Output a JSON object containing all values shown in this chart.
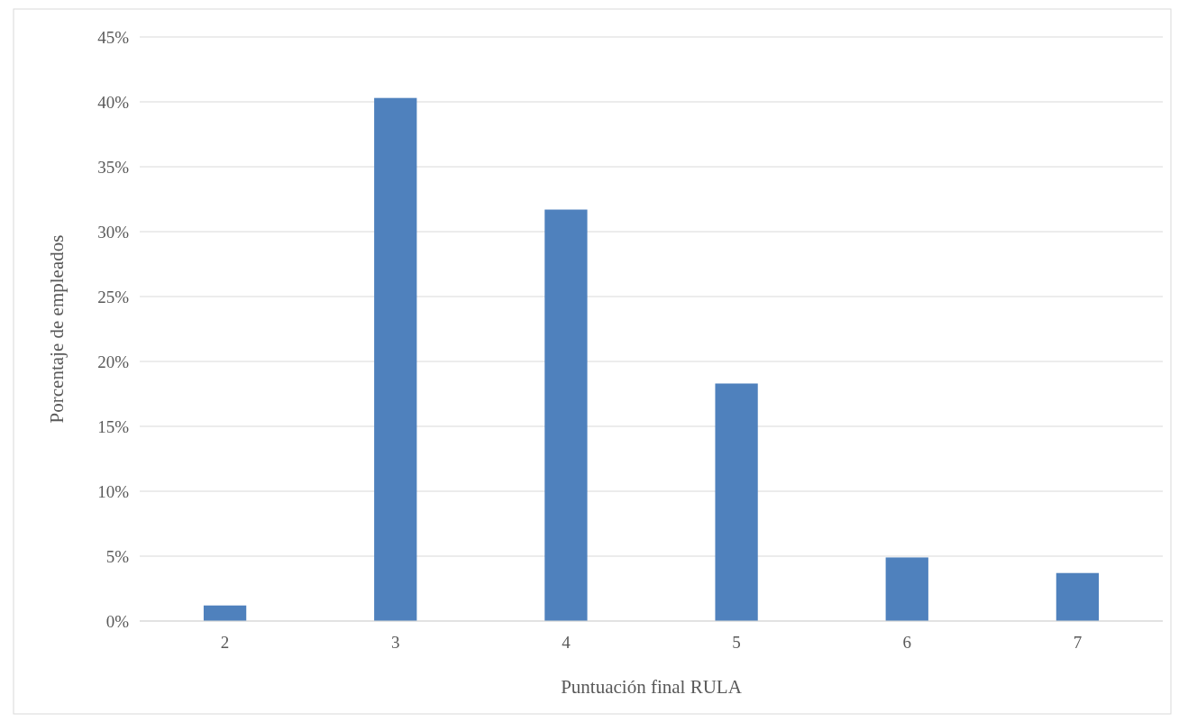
{
  "chart_data": {
    "type": "bar",
    "xlabel": "Puntuación final RULA",
    "ylabel": "Porcentaje de empleados",
    "categories": [
      "2",
      "3",
      "4",
      "5",
      "6",
      "7"
    ],
    "values": [
      1.2,
      40.3,
      31.7,
      18.3,
      4.9,
      3.7
    ],
    "color": "#4f81bd",
    "ylim": [
      0,
      45
    ],
    "yticks": [
      {
        "value": 0,
        "label": "0%"
      },
      {
        "value": 5,
        "label": "5%"
      },
      {
        "value": 10,
        "label": "10%"
      },
      {
        "value": 15,
        "label": "15%"
      },
      {
        "value": 20,
        "label": "20%"
      },
      {
        "value": 25,
        "label": "25%"
      },
      {
        "value": 30,
        "label": "30%"
      },
      {
        "value": 35,
        "label": "35%"
      },
      {
        "value": 40,
        "label": "40%"
      },
      {
        "value": 45,
        "label": "45%"
      }
    ],
    "grid": "y"
  }
}
